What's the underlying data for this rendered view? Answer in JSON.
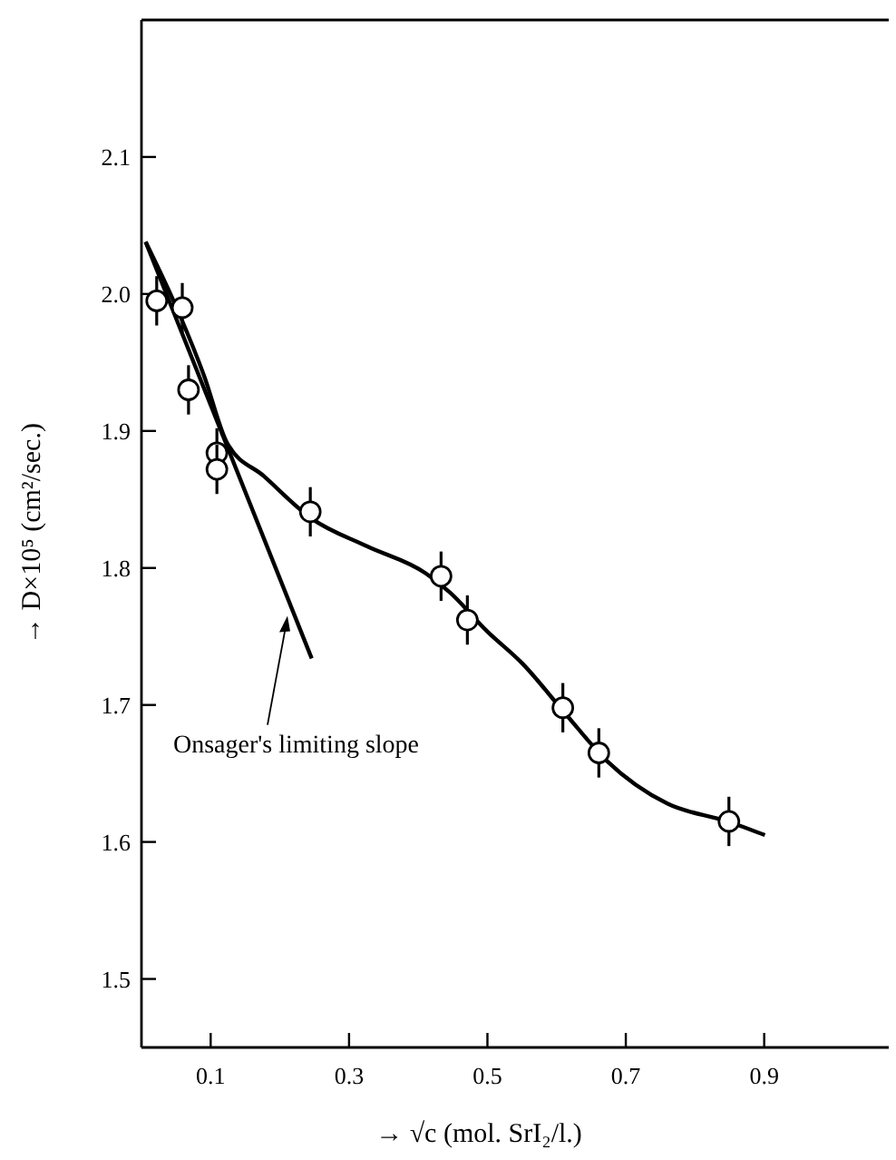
{
  "chart_data": {
    "type": "scatter",
    "xlabel": "→ √c (mol. SrI₂/l.)",
    "ylabel": "→ D×10⁵ (cm²/sec.)",
    "xlim": [
      0,
      1.08
    ],
    "ylim": [
      1.45,
      2.2
    ],
    "xticks": [
      0.1,
      0.3,
      0.5,
      0.7,
      0.9
    ],
    "yticks": [
      1.5,
      1.6,
      1.7,
      1.8,
      1.9,
      {
        "value": 2,
        "label": "2.0"
      },
      2.1
    ],
    "series": [
      {
        "color": "#000000",
        "marker": "circle",
        "x": [
          0.022,
          0.059,
          0.068,
          0.109,
          0.109,
          0.244,
          0.433,
          0.471,
          0.609,
          0.661,
          0.849
        ],
        "values": [
          1.995,
          1.99,
          1.93,
          1.884,
          1.872,
          1.841,
          1.794,
          1.762,
          1.698,
          1.665,
          1.615
        ],
        "errors": [
          0.018,
          0.018,
          0.018,
          0.018,
          0.018,
          0.018,
          0.018,
          0.018,
          0.018,
          0.018,
          0.018
        ]
      },
      {
        "type": "line",
        "color": "#000000",
        "x": [
          0.006,
          0.055,
          0.09,
          0.124,
          0.177,
          0.246,
          0.325,
          0.411,
          0.446,
          0.499,
          0.551,
          0.612,
          0.673,
          0.76,
          0.847,
          0.901
        ],
        "values": [
          2.038,
          1.985,
          1.941,
          1.891,
          1.867,
          1.836,
          1.816,
          1.796,
          1.782,
          1.754,
          1.73,
          1.694,
          1.659,
          1.628,
          1.615,
          1.605
        ]
      },
      {
        "type": "line",
        "color": "#000000",
        "x": [
          0.006,
          0.246
        ],
        "values": [
          2.038,
          1.734
        ]
      }
    ],
    "annotations": [
      {
        "text": "Onsager's limiting slope",
        "x": 0.211,
        "y": 1.765
      }
    ]
  }
}
